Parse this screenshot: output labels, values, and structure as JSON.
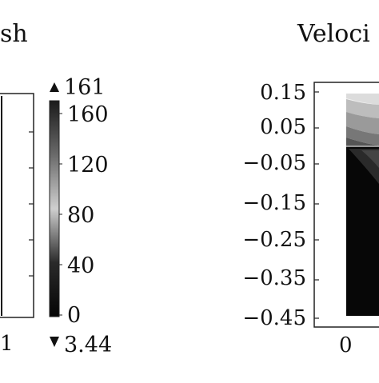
{
  "left_panel": {
    "title": "sh",
    "x_tick_label": "1"
  },
  "colorbar": {
    "max_marker": "161",
    "min_marker": "3.44",
    "tick_labels": [
      "160",
      "120",
      "80",
      "40",
      "0"
    ],
    "tick_values": [
      160,
      120,
      80,
      40,
      0
    ],
    "range": [
      0,
      160
    ]
  },
  "right_panel": {
    "title": "Veloci",
    "y_tick_labels": [
      "0.15",
      "0.05",
      "−0.05",
      "−0.15",
      "−0.25",
      "−0.35",
      "−0.45"
    ],
    "y_tick_values": [
      0.15,
      0.05,
      -0.05,
      -0.15,
      -0.25,
      -0.35,
      -0.45
    ],
    "x_tick_label": "0"
  },
  "colors": {
    "ink": "#111111",
    "frame": "#222222",
    "field_dark": "#070707"
  }
}
